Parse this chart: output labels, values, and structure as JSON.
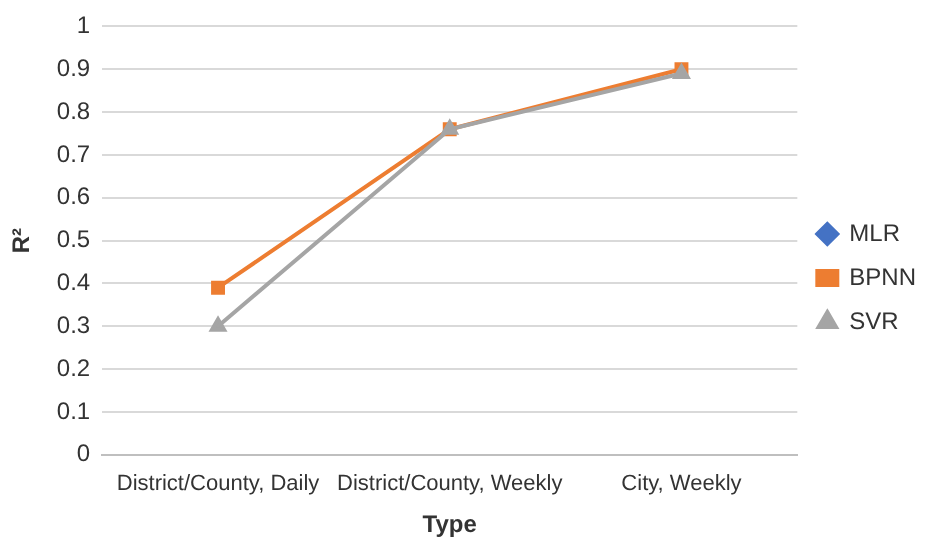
{
  "chart_data": {
    "type": "line",
    "xlabel": "Type",
    "ylabel": "R²",
    "categories": [
      "District/County, Daily",
      "District/County, Weekly",
      "City, Weekly"
    ],
    "series": [
      {
        "name": "MLR",
        "color": "#4472c4",
        "marker": "diamond",
        "values": [
          null,
          null,
          null
        ]
      },
      {
        "name": "BPNN",
        "color": "#ed7d31",
        "marker": "square",
        "values": [
          0.39,
          0.76,
          0.9
        ]
      },
      {
        "name": "SVR",
        "color": "#a5a5a5",
        "marker": "triangle",
        "values": [
          0.3,
          0.76,
          0.89
        ]
      }
    ],
    "ylim": [
      0,
      1
    ],
    "yticks": [
      0,
      0.1,
      0.2,
      0.3,
      0.4,
      0.5,
      0.6,
      0.7,
      0.8,
      0.9,
      1
    ],
    "grid": "y",
    "legend": "right",
    "line_style": "solid"
  }
}
